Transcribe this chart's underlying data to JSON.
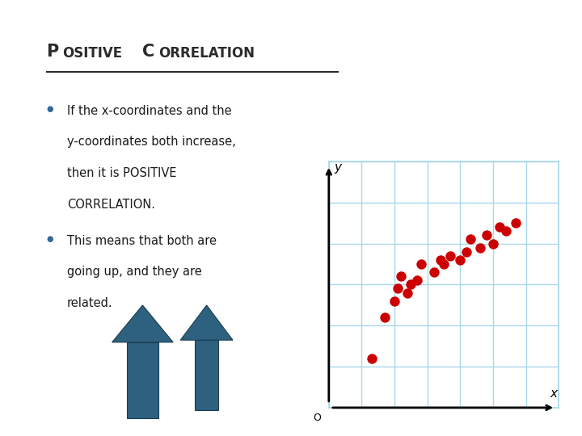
{
  "title_P": "P",
  "title_rest1": "OSITIVE",
  "title_C": "C",
  "title_rest2": "ORRELATION",
  "bullet1_lines": [
    "If the x-coordinates and the",
    "y-coordinates both increase,",
    "then it is POSITIVE",
    "CORRELATION."
  ],
  "bullet2_lines": [
    "This means that both are",
    "going up, and they are",
    "related."
  ],
  "bg_color": "#ffffff",
  "title_color": "#2b2b2b",
  "text_color": "#1a1a1a",
  "bullet_color": "#336699",
  "arrow_color": "#2e6080",
  "scatter_color": "#cc0000",
  "grid_color": "#a8d8ea",
  "axis_color": "#000000",
  "scatter_x": [
    1.3,
    1.7,
    2.0,
    2.1,
    2.2,
    2.4,
    2.5,
    2.7,
    2.8,
    3.2,
    3.4,
    3.5,
    3.7,
    4.0,
    4.2,
    4.3,
    4.6,
    4.8,
    5.0,
    5.2,
    5.4,
    5.7
  ],
  "scatter_y": [
    1.2,
    2.2,
    2.6,
    2.9,
    3.2,
    2.8,
    3.0,
    3.1,
    3.5,
    3.3,
    3.6,
    3.5,
    3.7,
    3.6,
    3.8,
    4.1,
    3.9,
    4.2,
    4.0,
    4.4,
    4.3,
    4.5
  ]
}
